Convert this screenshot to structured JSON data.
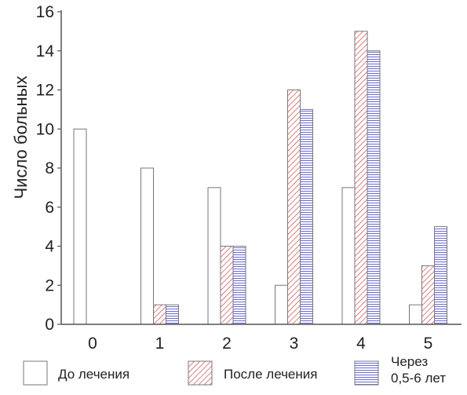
{
  "chart_data": {
    "type": "bar",
    "title": "",
    "xlabel": "",
    "ylabel": "Число больных",
    "categories": [
      "0",
      "1",
      "2",
      "3",
      "4",
      "5"
    ],
    "ylim": [
      0,
      16
    ],
    "yticks": [
      0,
      2,
      4,
      6,
      8,
      10,
      12,
      14,
      16
    ],
    "grid": false,
    "legend_position": "bottom",
    "series": [
      {
        "name": "До лечения",
        "pattern": "none",
        "values": [
          10,
          8,
          7,
          2,
          7,
          1
        ]
      },
      {
        "name": "После лечения",
        "pattern": "diagonal-red",
        "values": [
          0,
          1,
          4,
          12,
          15,
          3
        ]
      },
      {
        "name": "Через 0,5-6 лет",
        "label_lines": [
          "Через",
          "0,5-6 лет"
        ],
        "pattern": "horizontal-blue",
        "values": [
          0,
          1,
          4,
          11,
          14,
          5
        ]
      }
    ],
    "colors": {
      "axis": "#555555",
      "bar_stroke": "#777777",
      "diag_stroke": "#c84a4a",
      "horiz_stroke": "#6b6bd6"
    }
  }
}
